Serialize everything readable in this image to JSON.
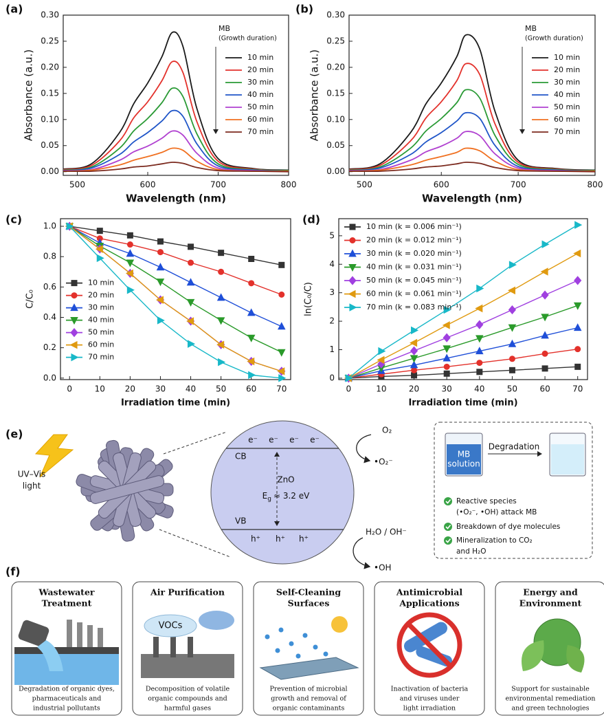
{
  "panel_labels": [
    "(a)",
    "(b)",
    "(c)",
    "(d)",
    "(e)",
    "(f)"
  ],
  "chart_data": [
    {
      "type": "line",
      "xlabel": "Wavelength (nm)",
      "ylabel": "Absorbance (a.u.)",
      "legend": "upper right",
      "legend_title": "MB",
      "legend_subtitle": "(Growth duration)",
      "x": [
        480,
        520,
        560,
        580,
        600,
        620,
        635,
        650,
        670,
        700,
        750,
        800
      ],
      "xlim": [
        480,
        800
      ],
      "ylim": [
        -0.007,
        0.3
      ],
      "xticks": [
        500,
        600,
        700,
        800
      ],
      "yticks": [
        {
          "value": 0,
          "label": "0.00"
        },
        {
          "value": 0.05,
          "label": "0.05"
        },
        {
          "value": 0.1,
          "label": "0.10"
        },
        {
          "value": 0.15,
          "label": "0.15"
        },
        {
          "value": 0.2,
          "label": "0.20"
        },
        {
          "value": 0.25,
          "label": "0.25"
        },
        {
          "value": 0.3,
          "label": "0.30"
        }
      ],
      "series": [
        {
          "name": "10 min",
          "color": "#1a1a1a",
          "values": [
            0.005,
            0.015,
            0.075,
            0.13,
            0.17,
            0.22,
            0.267,
            0.24,
            0.12,
            0.025,
            0.006,
            0.003
          ]
        },
        {
          "name": "20 min",
          "color": "#e3312b",
          "values": [
            0.004,
            0.012,
            0.059,
            0.103,
            0.134,
            0.174,
            0.211,
            0.19,
            0.095,
            0.02,
            0.005,
            0.002
          ]
        },
        {
          "name": "30 min",
          "color": "#2a9a35",
          "values": [
            0.003,
            0.009,
            0.045,
            0.078,
            0.102,
            0.132,
            0.16,
            0.144,
            0.072,
            0.015,
            0.004,
            0.002
          ]
        },
        {
          "name": "40 min",
          "color": "#1f55c8",
          "values": [
            0.002,
            0.007,
            0.033,
            0.057,
            0.075,
            0.097,
            0.117,
            0.106,
            0.053,
            0.011,
            0.003,
            0.001
          ]
        },
        {
          "name": "50 min",
          "color": "#b040d0",
          "values": [
            0.002,
            0.004,
            0.022,
            0.038,
            0.049,
            0.064,
            0.078,
            0.07,
            0.035,
            0.007,
            0.002,
            0.001
          ]
        },
        {
          "name": "60 min",
          "color": "#f07020",
          "values": [
            0.001,
            0.003,
            0.013,
            0.022,
            0.029,
            0.037,
            0.045,
            0.041,
            0.02,
            0.004,
            0.001,
            0.001
          ]
        },
        {
          "name": "70 min",
          "color": "#7b2a1e",
          "values": [
            0.001,
            0.001,
            0.005,
            0.009,
            0.011,
            0.015,
            0.018,
            0.016,
            0.008,
            0.002,
            0.001,
            0
          ]
        }
      ]
    },
    {
      "type": "line",
      "xlabel": "Wavelength (nm)",
      "ylabel": "Absorbance (a.u.)",
      "legend": "upper right",
      "legend_title": "MB",
      "legend_subtitle": "(Growth duration)",
      "x": [
        480,
        520,
        560,
        580,
        600,
        620,
        632,
        650,
        670,
        700,
        750,
        800
      ],
      "xlim": [
        480,
        800
      ],
      "ylim": [
        -0.007,
        0.3
      ],
      "xticks": [
        500,
        600,
        700,
        800
      ],
      "yticks": [
        {
          "value": 0,
          "label": "0.00"
        },
        {
          "value": 0.05,
          "label": "0.05"
        },
        {
          "value": 0.1,
          "label": "0.10"
        },
        {
          "value": 0.15,
          "label": "0.15"
        },
        {
          "value": 0.2,
          "label": "0.20"
        },
        {
          "value": 0.25,
          "label": "0.25"
        },
        {
          "value": 0.3,
          "label": "0.30"
        }
      ],
      "series": [
        {
          "name": "10 min",
          "color": "#1a1a1a",
          "values": [
            0.005,
            0.015,
            0.075,
            0.13,
            0.17,
            0.22,
            0.262,
            0.235,
            0.115,
            0.022,
            0.006,
            0.003
          ]
        },
        {
          "name": "20 min",
          "color": "#e3312b",
          "values": [
            0.004,
            0.012,
            0.059,
            0.103,
            0.134,
            0.174,
            0.207,
            0.186,
            0.091,
            0.018,
            0.005,
            0.002
          ]
        },
        {
          "name": "30 min",
          "color": "#2a9a35",
          "values": [
            0.003,
            0.009,
            0.045,
            0.078,
            0.102,
            0.132,
            0.157,
            0.141,
            0.069,
            0.014,
            0.004,
            0.002
          ]
        },
        {
          "name": "40 min",
          "color": "#1f55c8",
          "values": [
            0.002,
            0.007,
            0.033,
            0.057,
            0.075,
            0.097,
            0.113,
            0.102,
            0.05,
            0.01,
            0.003,
            0.001
          ]
        },
        {
          "name": "50 min",
          "color": "#b040d0",
          "values": [
            0.002,
            0.004,
            0.022,
            0.038,
            0.049,
            0.064,
            0.077,
            0.069,
            0.034,
            0.007,
            0.002,
            0.001
          ]
        },
        {
          "name": "60 min",
          "color": "#f07020",
          "values": [
            0.001,
            0.003,
            0.013,
            0.022,
            0.029,
            0.037,
            0.045,
            0.04,
            0.02,
            0.004,
            0.001,
            0.001
          ]
        },
        {
          "name": "70 min",
          "color": "#7b2a1e",
          "values": [
            0.001,
            0.001,
            0.005,
            0.009,
            0.011,
            0.015,
            0.018,
            0.016,
            0.008,
            0.002,
            0.001,
            0
          ]
        }
      ]
    },
    {
      "type": "line",
      "xlabel": "Irradiation time (min)",
      "ylabel": "C/C₀",
      "legend": "center left",
      "x": [
        0,
        10,
        20,
        30,
        40,
        50,
        60,
        70
      ],
      "xlim": [
        -3,
        73
      ],
      "ylim": [
        -0.01,
        1.05
      ],
      "xticks": [
        0,
        10,
        20,
        30,
        40,
        50,
        60,
        70
      ],
      "yticks": [
        {
          "value": 0,
          "label": "0.0"
        },
        {
          "value": 0.2,
          "label": "0.2"
        },
        {
          "value": 0.4,
          "label": "0.4"
        },
        {
          "value": 0.6,
          "label": "0.6"
        },
        {
          "value": 0.8,
          "label": "0.8"
        },
        {
          "value": 1,
          "label": "1.0"
        }
      ],
      "series": [
        {
          "name": "10 min",
          "color": "#333333",
          "marker": "square",
          "values": [
            1,
            0.97,
            0.94,
            0.9,
            0.865,
            0.825,
            0.785,
            0.745
          ]
        },
        {
          "name": "20 min",
          "color": "#e3312b",
          "marker": "circle",
          "values": [
            1,
            0.92,
            0.88,
            0.83,
            0.76,
            0.7,
            0.625,
            0.55
          ]
        },
        {
          "name": "30 min",
          "color": "#1f4fd8",
          "marker": "triangle-up",
          "values": [
            1,
            0.89,
            0.82,
            0.73,
            0.63,
            0.53,
            0.43,
            0.34
          ]
        },
        {
          "name": "40 min",
          "color": "#2a9a2a",
          "marker": "triangle-down",
          "values": [
            1,
            0.87,
            0.76,
            0.635,
            0.5,
            0.38,
            0.265,
            0.17
          ]
        },
        {
          "name": "50 min",
          "color": "#a040e0",
          "marker": "diamond",
          "values": [
            1,
            0.85,
            0.69,
            0.515,
            0.375,
            0.22,
            0.11,
            0.045
          ]
        },
        {
          "name": "60 min",
          "color": "#e09a10",
          "marker": "triangle-left",
          "values": [
            1,
            0.85,
            0.69,
            0.515,
            0.375,
            0.22,
            0.11,
            0.045
          ]
        },
        {
          "name": "70 min",
          "color": "#18b8c8",
          "marker": "triangle-right",
          "values": [
            1,
            0.79,
            0.58,
            0.38,
            0.225,
            0.105,
            0.02,
            0
          ]
        }
      ]
    },
    {
      "type": "line",
      "xlabel": "Irradiation time (min)",
      "ylabel": "ln(C₀/C)",
      "legend": "upper left",
      "x": [
        0,
        10,
        20,
        30,
        40,
        50,
        60,
        70
      ],
      "xlim": [
        -3,
        73
      ],
      "ylim": [
        -0.05,
        5.6
      ],
      "xticks": [
        0,
        10,
        20,
        30,
        40,
        50,
        60,
        70
      ],
      "yticks": [
        0,
        1,
        2,
        3,
        4,
        5
      ],
      "series": [
        {
          "name": "10 min  (k = 0.006 min⁻¹)",
          "color": "#333333",
          "marker": "square",
          "values": [
            0,
            0.06,
            0.1,
            0.16,
            0.22,
            0.28,
            0.34,
            0.4
          ]
        },
        {
          "name": "20 min  (k = 0.012 min⁻¹)",
          "color": "#e3312b",
          "marker": "circle",
          "values": [
            0,
            0.14,
            0.28,
            0.4,
            0.54,
            0.68,
            0.86,
            1.02
          ]
        },
        {
          "name": "30 min  (k = 0.020 min⁻¹)",
          "color": "#1f4fd8",
          "marker": "triangle-up",
          "values": [
            0,
            0.26,
            0.46,
            0.7,
            0.95,
            1.2,
            1.5,
            1.77
          ]
        },
        {
          "name": "40 min  (k = 0.031 min⁻¹)",
          "color": "#2a9a2a",
          "marker": "triangle-down",
          "values": [
            0,
            0.36,
            0.7,
            1.04,
            1.4,
            1.78,
            2.15,
            2.55
          ]
        },
        {
          "name": "50 min  (k = 0.045 min⁻¹)",
          "color": "#a040e0",
          "marker": "diamond",
          "values": [
            0,
            0.5,
            0.96,
            1.42,
            1.88,
            2.4,
            2.92,
            3.43
          ]
        },
        {
          "name": "60 min  (k = 0.061 min⁻¹)",
          "color": "#e09a10",
          "marker": "triangle-left",
          "values": [
            0,
            0.64,
            1.24,
            1.86,
            2.45,
            3.08,
            3.74,
            4.38
          ]
        },
        {
          "name": "70 min  (k = 0.083 min⁻¹)",
          "color": "#18b8c8",
          "marker": "triangle-right",
          "values": [
            0,
            0.95,
            1.68,
            2.4,
            3.15,
            3.98,
            4.7,
            5.38
          ]
        }
      ]
    }
  ],
  "panel_e": {
    "light_source": [
      "UV–Vis",
      "light"
    ],
    "cb": "CB",
    "vb": "VB",
    "material": "ZnO",
    "band_gap": [
      "E",
      "g",
      "≈ 3.2 eV"
    ],
    "electrons": [
      "e⁻",
      "e⁻",
      "e⁻",
      "e⁻"
    ],
    "holes": [
      "h⁺",
      "h⁺",
      "h⁺"
    ],
    "oxygen": "O₂",
    "superoxide": "•O₂⁻",
    "water": "H₂O / OH⁻",
    "hydroxyl": "•OH",
    "beaker_label": [
      "MB",
      "solution"
    ],
    "process": "Degradation",
    "bullets": [
      [
        "Reactive species",
        "(•O₂⁻, •OH) attack MB"
      ],
      [
        "Breakdown of dye molecules"
      ],
      [
        "Mineralization to CO₂",
        "and H₂O"
      ]
    ]
  },
  "panel_f": {
    "cards": [
      {
        "title": [
          "Wastewater",
          "Treatment"
        ],
        "description": [
          "Degradation of organic dyes,",
          "pharmaceuticals and",
          "industrial pollutants"
        ]
      },
      {
        "title": [
          "Air Purification"
        ],
        "label": "VOCs",
        "description": [
          "Decomposition of volatile",
          "organic compounds and",
          "harmful gases"
        ]
      },
      {
        "title": [
          "Self-Cleaning",
          "Surfaces"
        ],
        "description": [
          "Prevention of microbial",
          "growth and removal of",
          "organic contaminants"
        ]
      },
      {
        "title": [
          "Antimicrobial",
          "Applications"
        ],
        "description": [
          "Inactivation of bacteria",
          "and viruses under",
          "light irradiation"
        ]
      },
      {
        "title": [
          "Energy and",
          "Environment"
        ],
        "description": [
          "Support for sustainable",
          "environmental remediation",
          "and green technologies"
        ]
      }
    ]
  }
}
